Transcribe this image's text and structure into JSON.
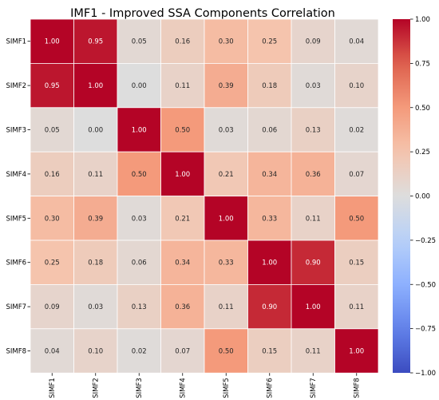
{
  "chart_data": {
    "type": "heatmap",
    "title": "IMF1 - Improved SSA Components Correlation",
    "row_labels": [
      "SIMF1",
      "SIMF2",
      "SIMF3",
      "SIMF4",
      "SIMF5",
      "SIMF6",
      "SIMF7",
      "SIMF8"
    ],
    "col_labels": [
      "SIMF1",
      "SIMF2",
      "SIMF3",
      "SIMF4",
      "SIMF5",
      "SIMF6",
      "SIMF7",
      "SIMF8"
    ],
    "values": [
      [
        1.0,
        0.95,
        0.05,
        0.16,
        0.3,
        0.25,
        0.09,
        0.04
      ],
      [
        0.95,
        1.0,
        0.0,
        0.11,
        0.39,
        0.18,
        0.03,
        0.1
      ],
      [
        0.05,
        0.0,
        1.0,
        0.5,
        0.03,
        0.06,
        0.13,
        0.02
      ],
      [
        0.16,
        0.11,
        0.5,
        1.0,
        0.21,
        0.34,
        0.36,
        0.07
      ],
      [
        0.3,
        0.39,
        0.03,
        0.21,
        1.0,
        0.33,
        0.11,
        0.5
      ],
      [
        0.25,
        0.18,
        0.06,
        0.34,
        0.33,
        1.0,
        0.9,
        0.15
      ],
      [
        0.09,
        0.03,
        0.13,
        0.36,
        0.11,
        0.9,
        1.0,
        0.11
      ],
      [
        0.04,
        0.1,
        0.02,
        0.07,
        0.5,
        0.15,
        0.11,
        1.0
      ]
    ],
    "value_format": "0.00",
    "colormap": "coolwarm",
    "vmin": -1.0,
    "vmax": 1.0,
    "colorbar": {
      "ticks": [
        1.0,
        0.75,
        0.5,
        0.25,
        0.0,
        -0.25,
        -0.5,
        -0.75,
        -1.0
      ],
      "tick_labels": [
        "1.00",
        "0.75",
        "0.50",
        "0.25",
        "0.00",
        "−0.25",
        "−0.50",
        "−0.75",
        "−1.00"
      ],
      "placement": "right"
    },
    "cell_gridlines": "white",
    "x_tick_rotation": "vertical",
    "xlabel": "",
    "ylabel": ""
  }
}
